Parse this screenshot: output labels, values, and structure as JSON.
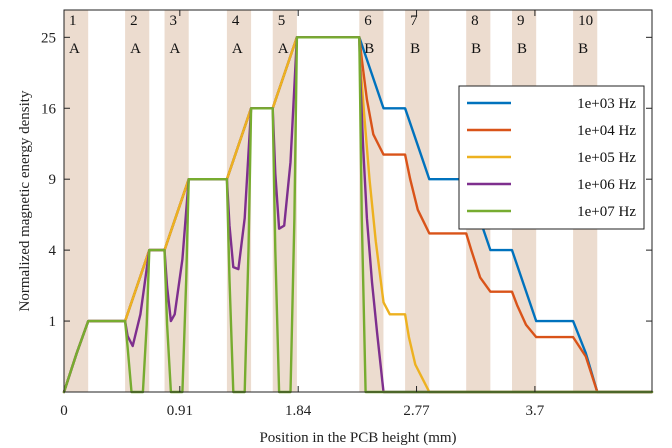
{
  "chart_data": {
    "type": "line",
    "title": "",
    "xlabel": "Position in the PCB height (mm)",
    "ylabel": "Normalized magnetic energy density",
    "xlim": [
      0,
      4.62
    ],
    "ylim": [
      0,
      29
    ],
    "y_scale": "sqrt",
    "x_ticks": [
      {
        "value": 0,
        "label": "0"
      },
      {
        "value": 0.91,
        "label": "0.91"
      },
      {
        "value": 1.84,
        "label": "1.84"
      },
      {
        "value": 2.77,
        "label": "2.77"
      },
      {
        "value": 3.7,
        "label": "3.7"
      }
    ],
    "y_ticks": [
      {
        "value": 1,
        "label": "1"
      },
      {
        "value": 4,
        "label": "4"
      },
      {
        "value": 9,
        "label": "9"
      },
      {
        "value": 16,
        "label": "16"
      },
      {
        "value": 25,
        "label": "25"
      }
    ],
    "grid": false,
    "legend_position": "right",
    "band_color": "#ecdccf",
    "bands": [
      {
        "start": 0.0,
        "end": 0.19,
        "number": "1",
        "letter": "A"
      },
      {
        "start": 0.48,
        "end": 0.67,
        "number": "2",
        "letter": "A"
      },
      {
        "start": 0.79,
        "end": 0.98,
        "number": "3",
        "letter": "A"
      },
      {
        "start": 1.28,
        "end": 1.47,
        "number": "4",
        "letter": "A"
      },
      {
        "start": 1.64,
        "end": 1.83,
        "number": "5",
        "letter": "A"
      },
      {
        "start": 2.32,
        "end": 2.51,
        "number": "6",
        "letter": "B"
      },
      {
        "start": 2.68,
        "end": 2.87,
        "number": "7",
        "letter": "B"
      },
      {
        "start": 3.16,
        "end": 3.35,
        "number": "8",
        "letter": "B"
      },
      {
        "start": 3.52,
        "end": 3.71,
        "number": "9",
        "letter": "B"
      },
      {
        "start": 4.0,
        "end": 4.19,
        "number": "10",
        "letter": "B"
      }
    ],
    "series": [
      {
        "name": "1e+03 Hz",
        "color": "#0072bd",
        "points": [
          [
            0,
            0
          ],
          [
            0.1,
            0.3
          ],
          [
            0.19,
            1
          ],
          [
            0.48,
            1
          ],
          [
            0.575,
            2.25
          ],
          [
            0.67,
            4
          ],
          [
            0.79,
            4
          ],
          [
            0.885,
            6.25
          ],
          [
            0.98,
            9
          ],
          [
            1.28,
            9
          ],
          [
            1.375,
            12.25
          ],
          [
            1.47,
            16
          ],
          [
            1.64,
            16
          ],
          [
            1.735,
            20.25
          ],
          [
            1.83,
            25
          ],
          [
            2.32,
            25
          ],
          [
            2.415,
            20.25
          ],
          [
            2.51,
            16
          ],
          [
            2.68,
            16
          ],
          [
            2.775,
            12.25
          ],
          [
            2.87,
            9
          ],
          [
            3.16,
            9
          ],
          [
            3.255,
            6.25
          ],
          [
            3.35,
            4
          ],
          [
            3.52,
            4
          ],
          [
            3.615,
            2.25
          ],
          [
            3.71,
            1
          ],
          [
            4.0,
            1
          ],
          [
            4.1,
            0.3
          ],
          [
            4.19,
            0
          ],
          [
            4.62,
            0
          ]
        ]
      },
      {
        "name": "1e+04 Hz",
        "color": "#d95319",
        "points": [
          [
            0,
            0
          ],
          [
            0.1,
            0.3
          ],
          [
            0.19,
            1
          ],
          [
            0.48,
            1
          ],
          [
            0.575,
            2.25
          ],
          [
            0.67,
            4
          ],
          [
            0.79,
            4
          ],
          [
            0.885,
            6.25
          ],
          [
            0.98,
            9
          ],
          [
            1.28,
            9
          ],
          [
            1.375,
            12.25
          ],
          [
            1.47,
            16
          ],
          [
            1.64,
            16
          ],
          [
            1.735,
            20.25
          ],
          [
            1.83,
            25
          ],
          [
            2.32,
            25
          ],
          [
            2.34,
            22
          ],
          [
            2.38,
            17
          ],
          [
            2.43,
            13.2
          ],
          [
            2.51,
            11.2
          ],
          [
            2.68,
            11.2
          ],
          [
            2.72,
            9
          ],
          [
            2.78,
            6.6
          ],
          [
            2.87,
            5
          ],
          [
            3.16,
            5
          ],
          [
            3.2,
            4
          ],
          [
            3.27,
            2.6
          ],
          [
            3.35,
            2
          ],
          [
            3.52,
            2
          ],
          [
            3.56,
            1.5
          ],
          [
            3.63,
            0.9
          ],
          [
            3.71,
            0.6
          ],
          [
            4.0,
            0.6
          ],
          [
            4.1,
            0.25
          ],
          [
            4.19,
            0
          ],
          [
            4.62,
            0
          ]
        ]
      },
      {
        "name": "1e+05 Hz",
        "color": "#edb120",
        "points": [
          [
            0,
            0
          ],
          [
            0.1,
            0.3
          ],
          [
            0.19,
            1
          ],
          [
            0.48,
            1
          ],
          [
            0.575,
            2.25
          ],
          [
            0.67,
            4
          ],
          [
            0.79,
            4
          ],
          [
            0.885,
            6.25
          ],
          [
            0.98,
            9
          ],
          [
            1.28,
            9
          ],
          [
            1.375,
            12.25
          ],
          [
            1.47,
            16
          ],
          [
            1.64,
            16
          ],
          [
            1.735,
            20.25
          ],
          [
            1.83,
            25
          ],
          [
            2.32,
            25
          ],
          [
            2.33,
            21
          ],
          [
            2.36,
            15
          ],
          [
            2.4,
            9
          ],
          [
            2.45,
            4.5
          ],
          [
            2.51,
            1.6
          ],
          [
            2.56,
            1.2
          ],
          [
            2.68,
            1.2
          ],
          [
            2.71,
            0.6
          ],
          [
            2.76,
            0.15
          ],
          [
            2.87,
            0
          ],
          [
            4.62,
            0
          ]
        ]
      },
      {
        "name": "1e+06 Hz",
        "color": "#7e2f8e",
        "points": [
          [
            0,
            0
          ],
          [
            0.1,
            0.3
          ],
          [
            0.19,
            1
          ],
          [
            0.48,
            1
          ],
          [
            0.5,
            0.62
          ],
          [
            0.54,
            0.42
          ],
          [
            0.6,
            1.2
          ],
          [
            0.64,
            2.6
          ],
          [
            0.67,
            4
          ],
          [
            0.79,
            4
          ],
          [
            0.81,
            2.2
          ],
          [
            0.84,
            1.0
          ],
          [
            0.87,
            1.2
          ],
          [
            0.93,
            3.5
          ],
          [
            0.98,
            9
          ],
          [
            1.28,
            9
          ],
          [
            1.3,
            5.5
          ],
          [
            1.33,
            3.1
          ],
          [
            1.37,
            3.0
          ],
          [
            1.42,
            6
          ],
          [
            1.47,
            16
          ],
          [
            1.64,
            16
          ],
          [
            1.66,
            9.5
          ],
          [
            1.69,
            5.3
          ],
          [
            1.73,
            5.5
          ],
          [
            1.78,
            10.5
          ],
          [
            1.83,
            25
          ],
          [
            2.32,
            25
          ],
          [
            2.33,
            19
          ],
          [
            2.35,
            12
          ],
          [
            2.38,
            6
          ],
          [
            2.42,
            2.4
          ],
          [
            2.46,
            0.7
          ],
          [
            2.51,
            0
          ],
          [
            4.62,
            0
          ]
        ]
      },
      {
        "name": "1e+07 Hz",
        "color": "#77ac30",
        "points": [
          [
            0,
            0
          ],
          [
            0.1,
            0.3
          ],
          [
            0.19,
            1
          ],
          [
            0.48,
            1
          ],
          [
            0.5,
            0.4
          ],
          [
            0.53,
            0
          ],
          [
            0.62,
            0
          ],
          [
            0.65,
            0.9
          ],
          [
            0.67,
            4
          ],
          [
            0.79,
            4
          ],
          [
            0.81,
            0.9
          ],
          [
            0.84,
            0
          ],
          [
            0.93,
            0
          ],
          [
            0.96,
            2.5
          ],
          [
            0.98,
            9
          ],
          [
            1.28,
            9
          ],
          [
            1.3,
            2.5
          ],
          [
            1.33,
            0
          ],
          [
            1.42,
            0
          ],
          [
            1.45,
            4
          ],
          [
            1.47,
            16
          ],
          [
            1.64,
            16
          ],
          [
            1.66,
            4
          ],
          [
            1.69,
            0
          ],
          [
            1.78,
            0
          ],
          [
            1.81,
            6
          ],
          [
            1.83,
            25
          ],
          [
            2.32,
            25
          ],
          [
            2.34,
            6
          ],
          [
            2.37,
            0
          ],
          [
            4.62,
            0
          ]
        ]
      }
    ]
  }
}
